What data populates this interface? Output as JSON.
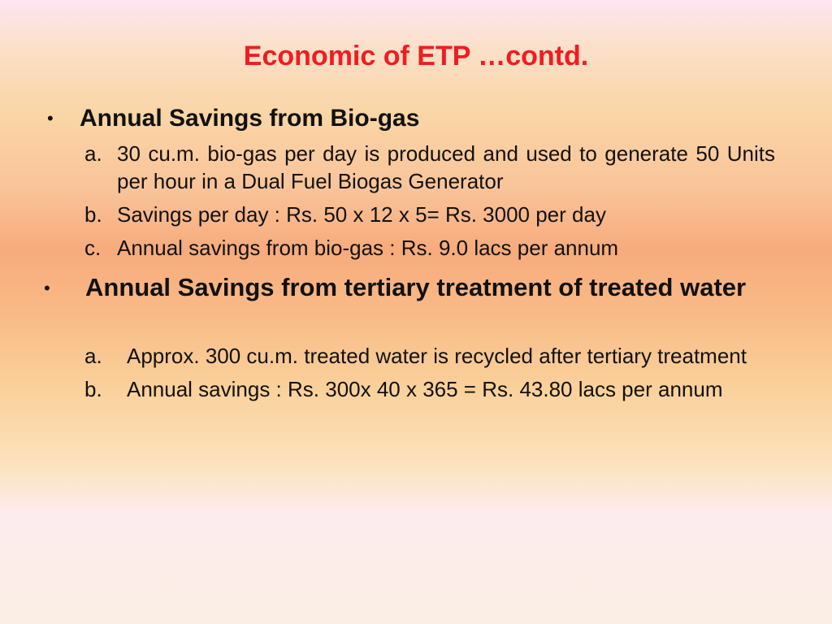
{
  "title": "Economic of ETP …contd.",
  "sections": [
    {
      "bullet": "•",
      "heading": "Annual Savings from Bio-gas",
      "items": [
        {
          "marker": "a.",
          "text": "30 cu.m. bio-gas per day is produced and used to generate 50 Units per hour in a Dual Fuel Biogas Generator"
        },
        {
          "marker": "b.",
          "text": "Savings per day : Rs. 50 x 12 x 5= Rs. 3000 per day"
        },
        {
          "marker": "c.",
          "text": "Annual savings from bio-gas : Rs. 9.0 lacs per annum"
        }
      ]
    },
    {
      "bullet": "•",
      "heading": "Annual Savings from tertiary treatment of treated water",
      "items": [
        {
          "marker": "a.",
          "text": "Approx. 300 cu.m. treated water is recycled after tertiary treatment"
        },
        {
          "marker": "b.",
          "text": "Annual savings : Rs. 300x 40 x 365 = Rs. 43.80 lacs per annum"
        }
      ]
    }
  ]
}
